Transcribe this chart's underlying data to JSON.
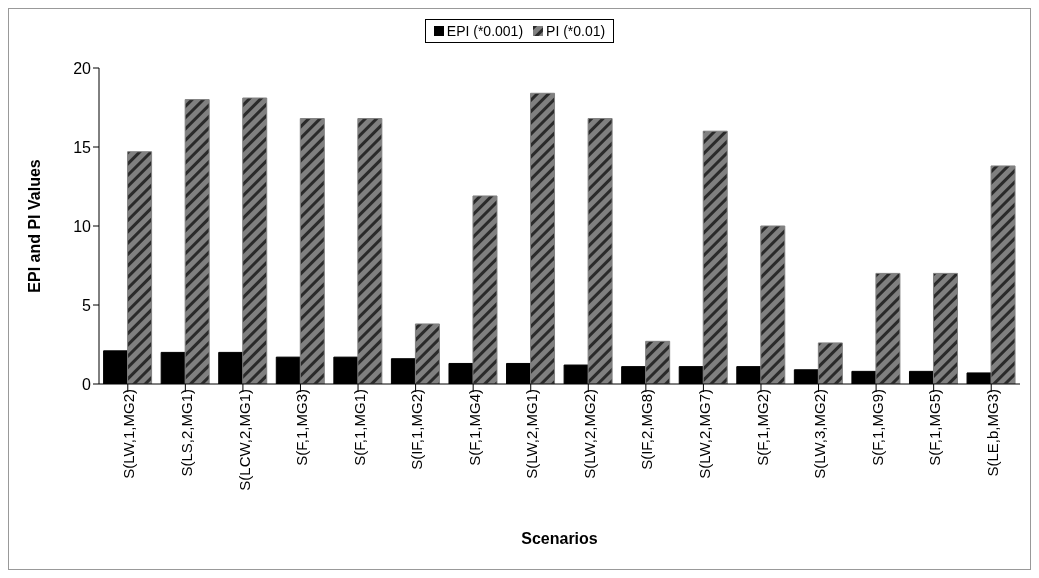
{
  "chart_data": {
    "type": "bar",
    "xlabel": "Scenarios",
    "ylabel": "EPI and PI Values",
    "categories": [
      "S(LW,1,MG2)",
      "S(LS,2,MG1)",
      "S(LCW,2,MG1)",
      "S(F,1,MG3)",
      "S(F,1,MG1)",
      "S(IF,1,MG2)",
      "S(F,1,MG4)",
      "S(LW,2,MG1)",
      "S(LW,2,MG2)",
      "S(IF,2,MG8)",
      "S(LW,2,MG7)",
      "S(F,1,MG2)",
      "S(LW,3,MG2)",
      "S(F,1,MG9)",
      "S(F,1,MG5)",
      "S(LE,b,MG3)"
    ],
    "series": [
      {
        "name": "EPI (*0.001)",
        "color": "#000000",
        "values": [
          2.1,
          2.0,
          2.0,
          1.7,
          1.7,
          1.6,
          1.3,
          1.3,
          1.2,
          1.1,
          1.1,
          1.1,
          0.9,
          0.8,
          0.8,
          0.7
        ]
      },
      {
        "name": "PI (*0.01)",
        "color": "#808080",
        "values": [
          14.7,
          18.0,
          18.1,
          16.8,
          16.8,
          3.8,
          11.9,
          18.4,
          16.8,
          2.7,
          16.0,
          10.0,
          2.6,
          7.0,
          7.0,
          13.8
        ]
      }
    ],
    "ylim": [
      0,
      20
    ],
    "yticks": [
      0,
      5,
      10,
      15,
      20
    ],
    "grid": false,
    "legend": "top"
  }
}
